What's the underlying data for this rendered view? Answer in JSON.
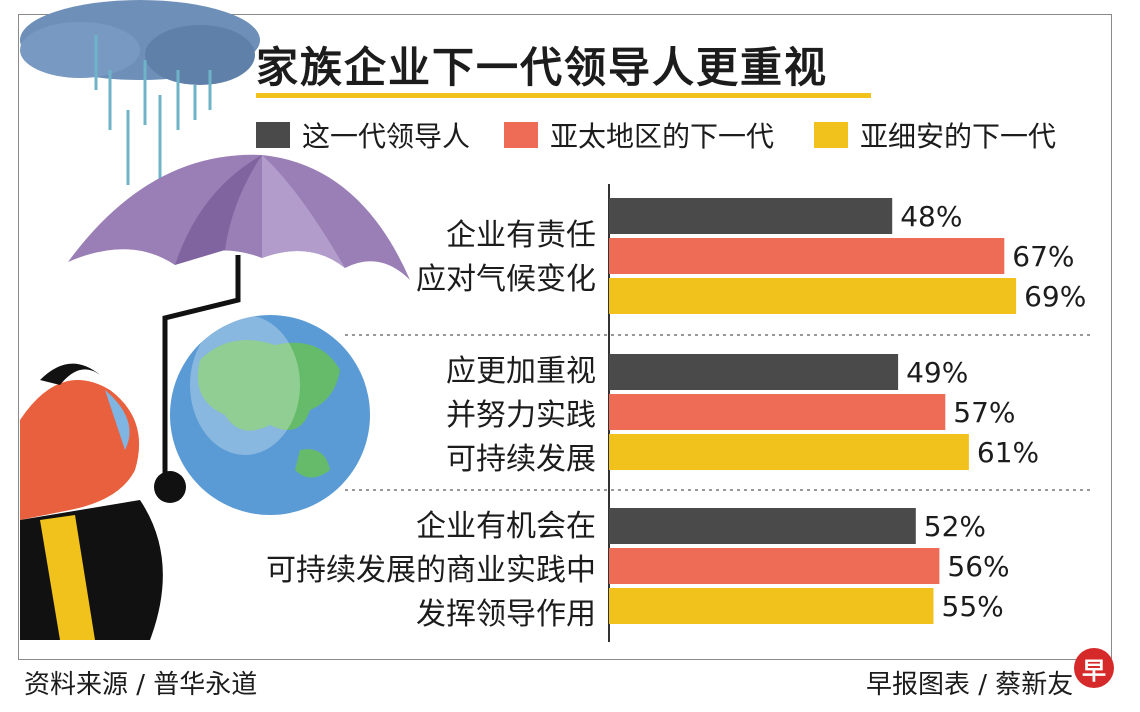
{
  "title": "家族企业下一代领导人更重视",
  "legend": [
    {
      "label": "这一代领导人",
      "color": "#4a4a4a"
    },
    {
      "label": "亚太地区的下一代",
      "color": "#ee6c55"
    },
    {
      "label": "亚细安的下一代",
      "color": "#f2c21c"
    }
  ],
  "chart_data": {
    "type": "bar",
    "orientation": "horizontal",
    "categories": [
      "企业有责任\n应对气候变化",
      "应更加重视\n并努力实践\n可持续发展",
      "企业有机会在\n可持续发展的商业实践中\n发挥领导作用"
    ],
    "series": [
      {
        "name": "这一代领导人",
        "color": "#4a4a4a",
        "values": [
          48,
          49,
          52
        ]
      },
      {
        "name": "亚太地区的下一代",
        "color": "#ee6c55",
        "values": [
          67,
          57,
          56
        ]
      },
      {
        "name": "亚细安的下一代",
        "color": "#f2c21c",
        "values": [
          69,
          61,
          55
        ]
      }
    ],
    "value_suffix": "%",
    "legend_position": "top",
    "grid": false
  },
  "footer": {
    "source": "资料来源 / 普华永道",
    "credit": "早报图表 / 蔡新友",
    "logo_text": "早"
  }
}
